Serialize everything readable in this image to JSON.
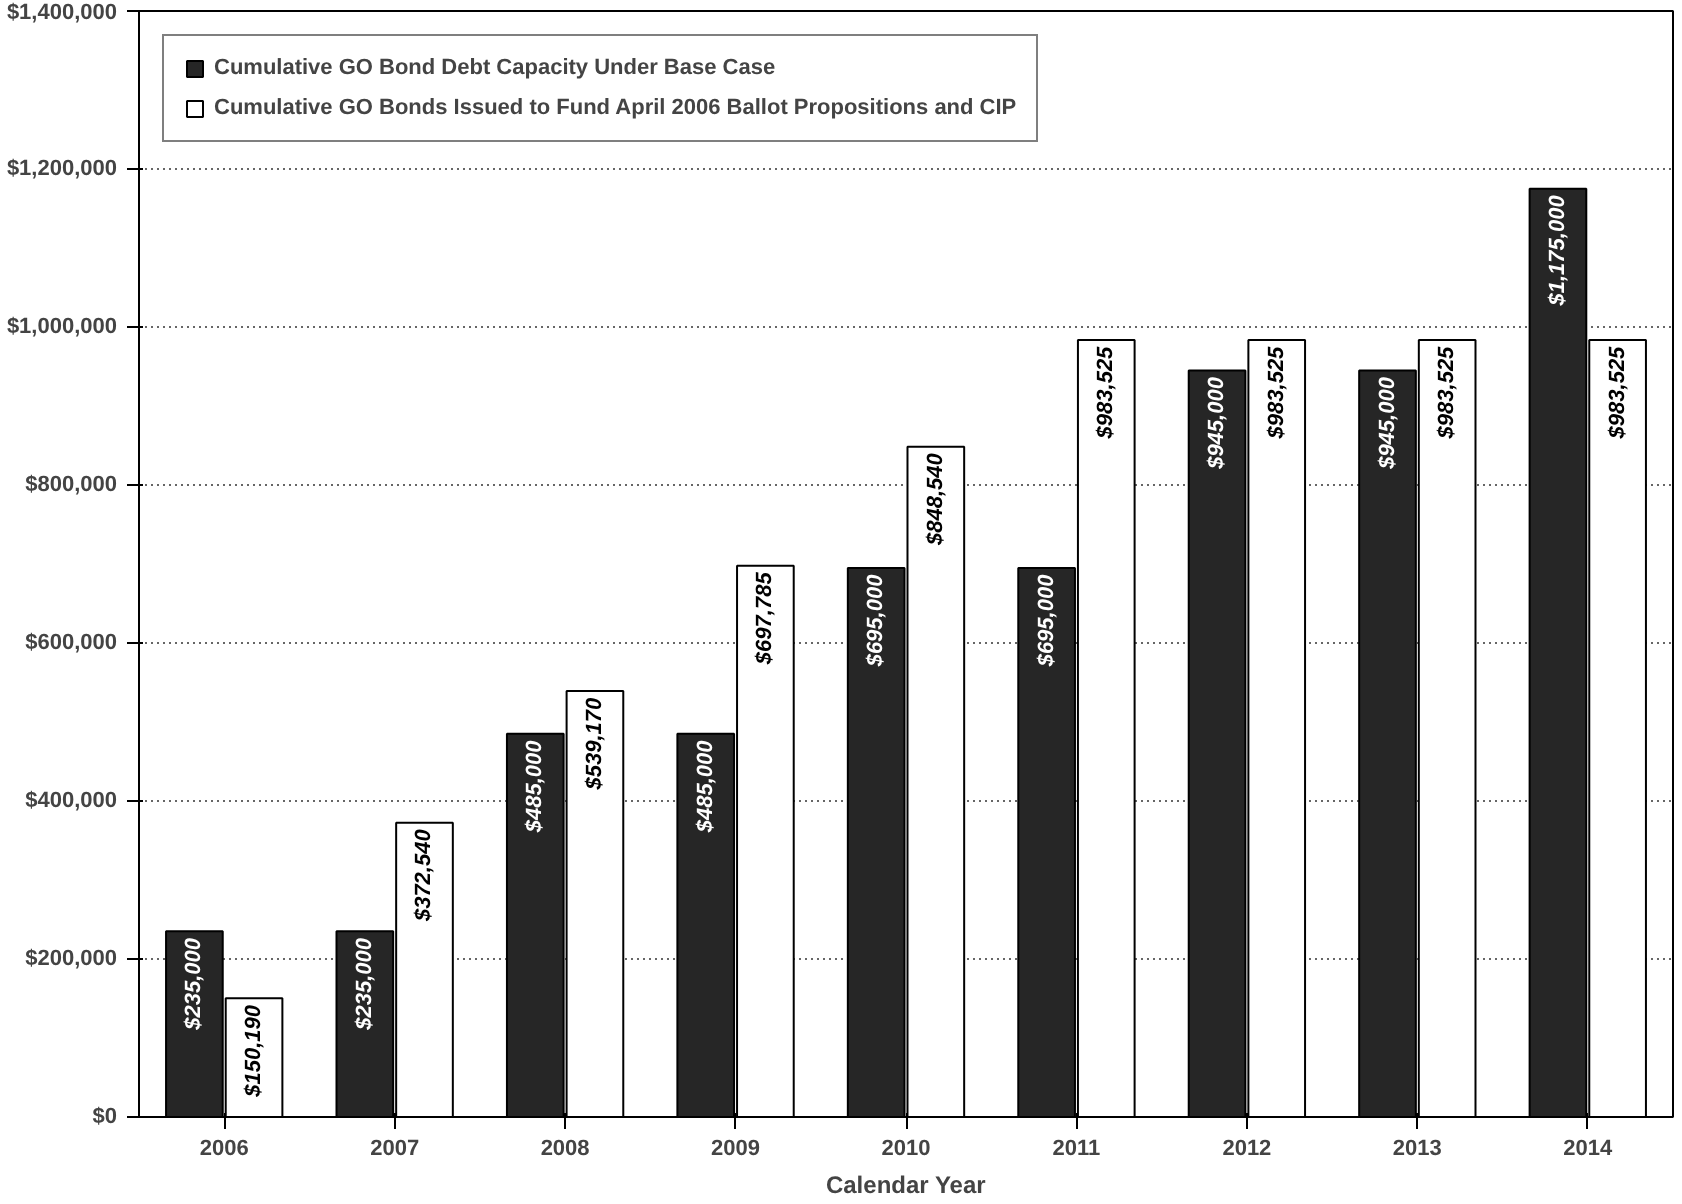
{
  "chart_data": {
    "type": "bar",
    "xlabel": "Calendar Year",
    "categories": [
      "2006",
      "2007",
      "2008",
      "2009",
      "2010",
      "2011",
      "2012",
      "2013",
      "2014"
    ],
    "series": [
      {
        "name": "Cumulative GO Bond Debt Capacity Under Base Case",
        "color": "#262626",
        "values": [
          235000,
          235000,
          485000,
          485000,
          695000,
          695000,
          945000,
          945000,
          1175000
        ],
        "value_labels": [
          "$235,000",
          "$235,000",
          "$485,000",
          "$485,000",
          "$695,000",
          "$695,000",
          "$945,000",
          "$945,000",
          "$1,175,000"
        ]
      },
      {
        "name": "Cumulative GO Bonds Issued to Fund April 2006 Ballot Propositions and CIP",
        "color": "#ffffff",
        "values": [
          150190,
          372540,
          539170,
          697785,
          848540,
          983525,
          983525,
          983525,
          983525
        ],
        "value_labels": [
          "$150,190",
          "$372,540",
          "$539,170",
          "$697,785",
          "$848,540",
          "$983,525",
          "$983,525",
          "$983,525",
          "$983,525"
        ]
      }
    ],
    "ylim": [
      0,
      1400000
    ],
    "yticks": [
      {
        "value": 0,
        "label": "$0"
      },
      {
        "value": 200000,
        "label": "$200,000"
      },
      {
        "value": 400000,
        "label": "$400,000"
      },
      {
        "value": 600000,
        "label": "$600,000"
      },
      {
        "value": 800000,
        "label": "$800,000"
      },
      {
        "value": 1000000,
        "label": "$1,000,000"
      },
      {
        "value": 1200000,
        "label": "$1,200,000"
      },
      {
        "value": 1400000,
        "label": "$1,400,000"
      }
    ],
    "grid": "y",
    "legend": "top left"
  }
}
